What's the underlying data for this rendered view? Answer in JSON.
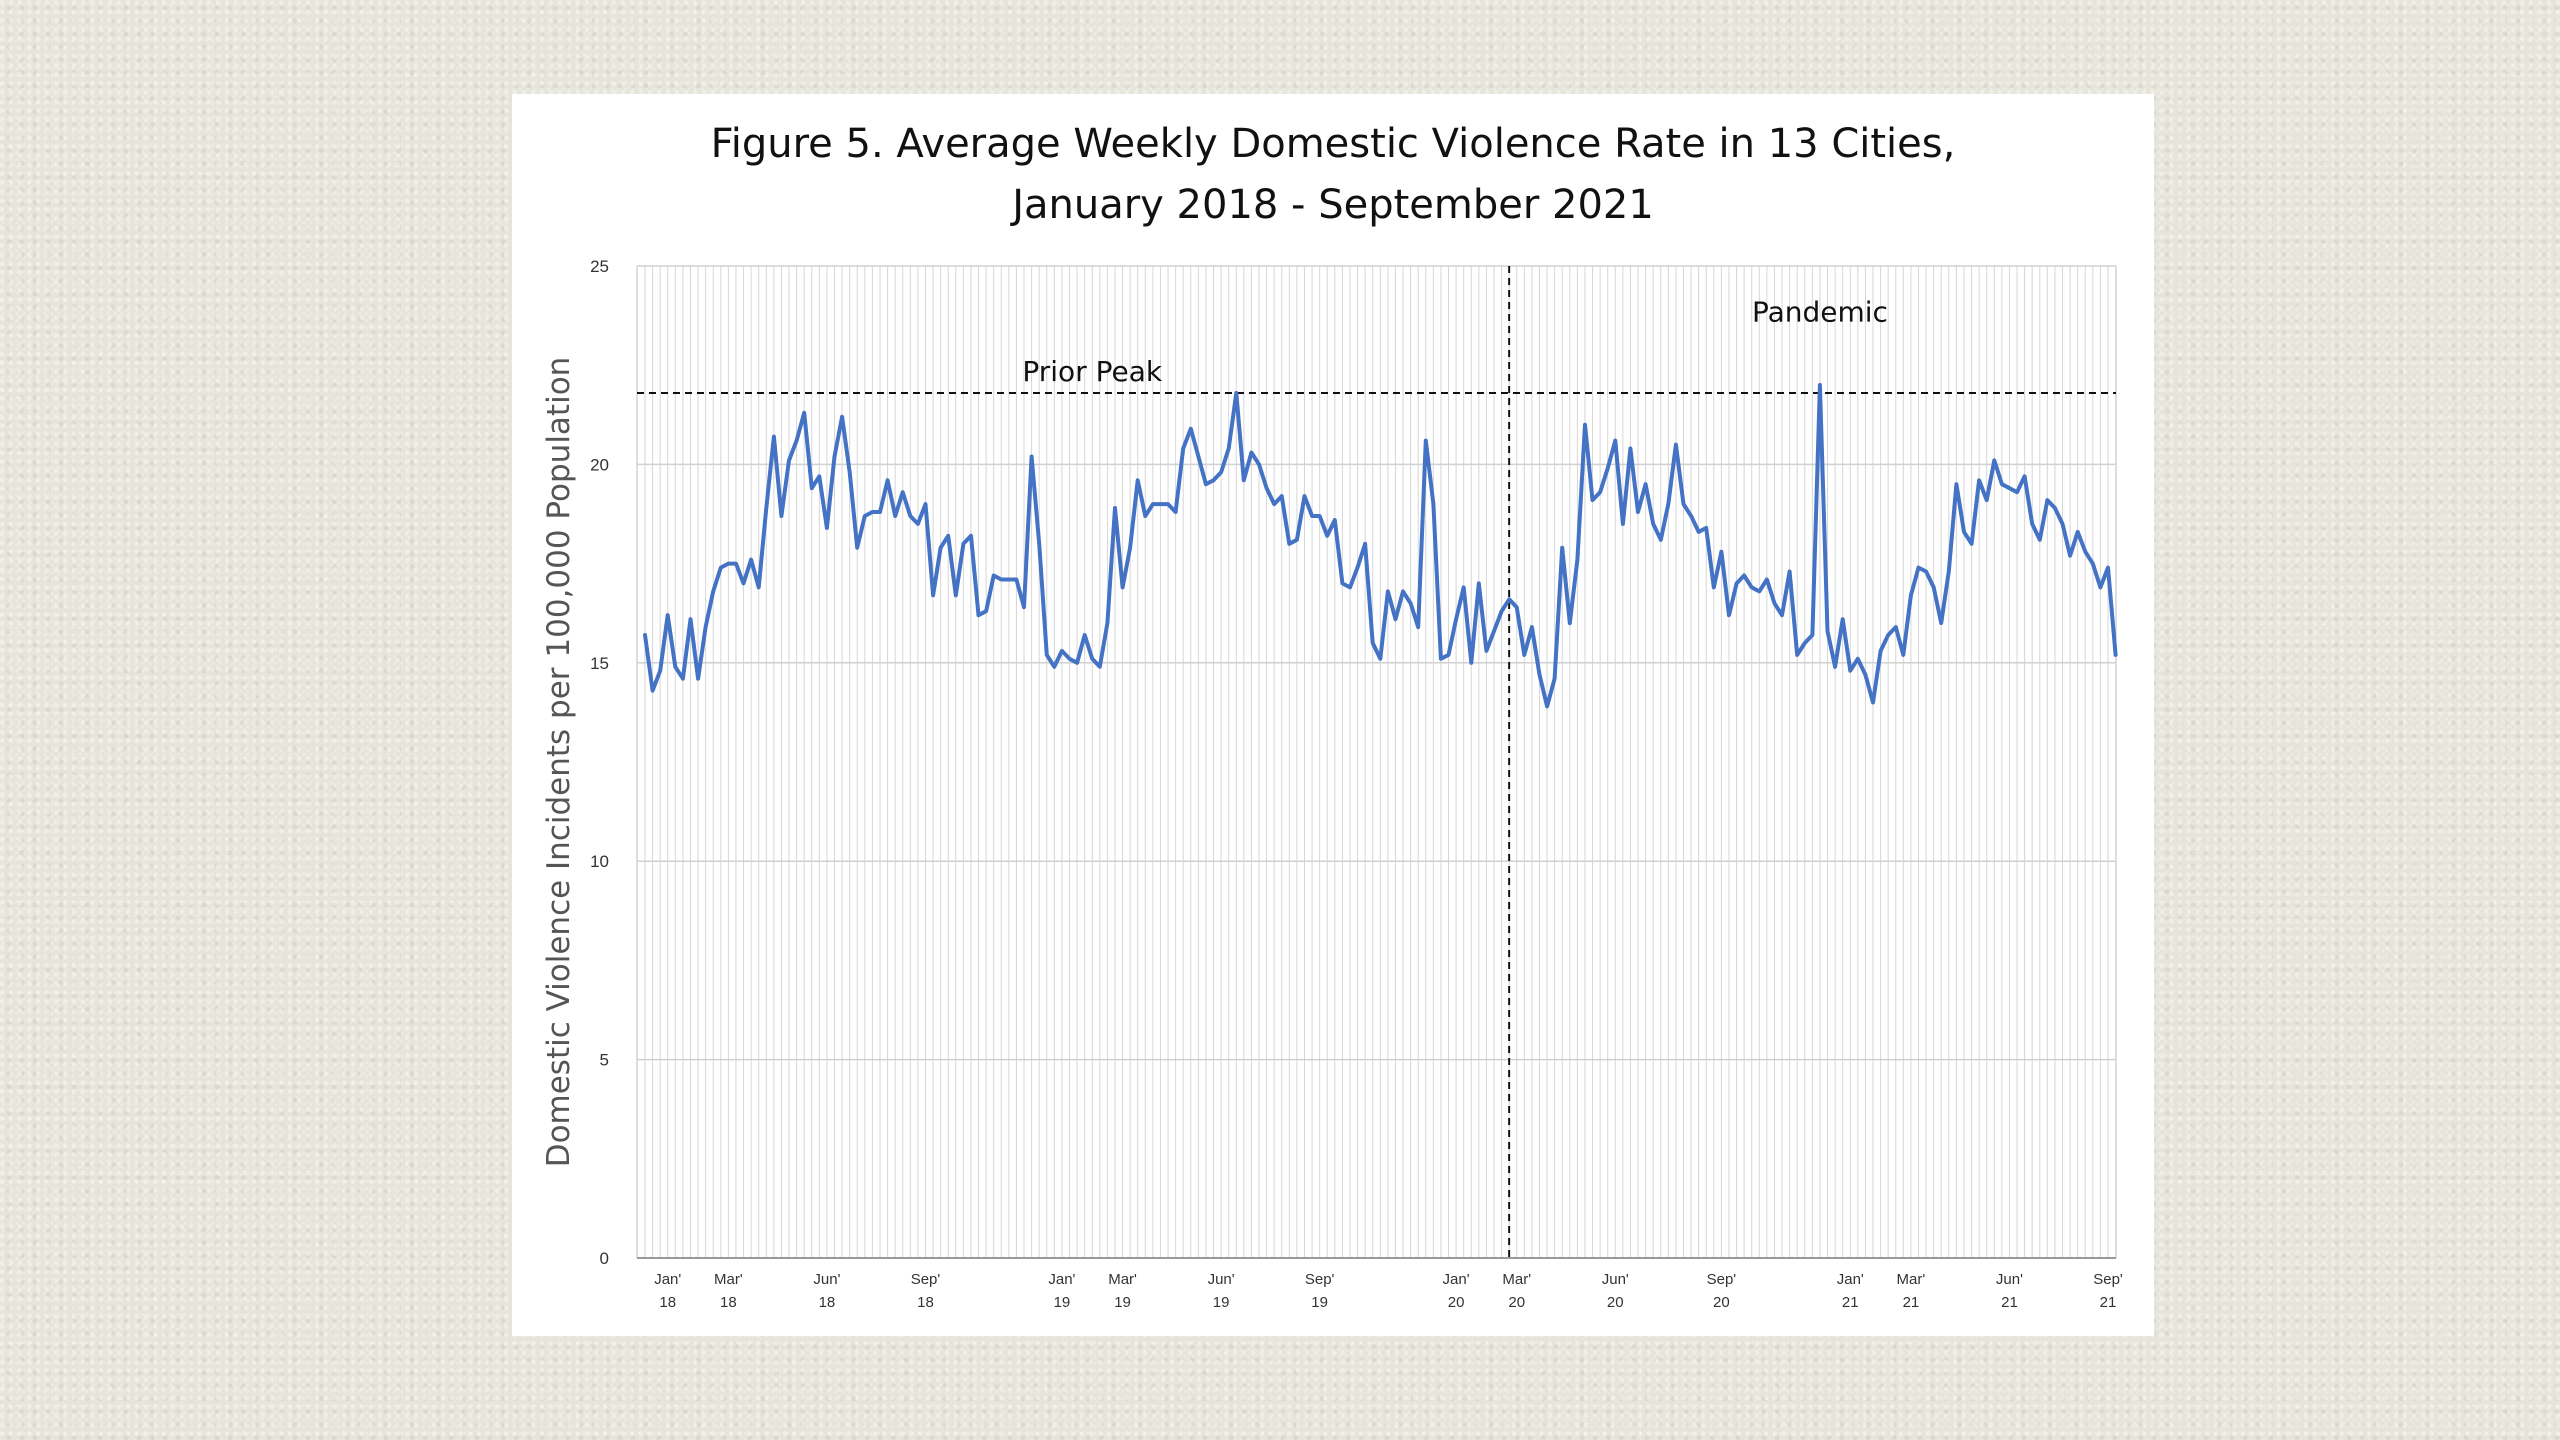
{
  "chart_data": {
    "type": "line",
    "title_lines": [
      "Figure 5. Average Weekly Domestic Violence Rate in 13 Cities,",
      "January 2018 - September 2021"
    ],
    "ylabel": "Domestic Violence Incidents per 100,000 Population",
    "xlabel": "",
    "ylim": [
      0,
      25
    ],
    "y_ticks": [
      0,
      5,
      10,
      15,
      20,
      25
    ],
    "grid": "vertical weekly gridlines, horizontal gridlines at 5-unit intervals",
    "x_week_range": [
      0,
      193
    ],
    "x_ticks": [
      {
        "week": 3,
        "label": [
          "Jan'",
          "18"
        ]
      },
      {
        "week": 11,
        "label": [
          "Mar'",
          "18"
        ]
      },
      {
        "week": 24,
        "label": [
          "Jun'",
          "18"
        ]
      },
      {
        "week": 37,
        "label": [
          "Sep'",
          "18"
        ]
      },
      {
        "week": 55,
        "label": [
          "Jan'",
          "19"
        ]
      },
      {
        "week": 63,
        "label": [
          "Mar'",
          "19"
        ]
      },
      {
        "week": 76,
        "label": [
          "Jun'",
          "19"
        ]
      },
      {
        "week": 89,
        "label": [
          "Sep'",
          "19"
        ]
      },
      {
        "week": 107,
        "label": [
          "Jan'",
          "20"
        ]
      },
      {
        "week": 115,
        "label": [
          "Mar'",
          "20"
        ]
      },
      {
        "week": 128,
        "label": [
          "Jun'",
          "20"
        ]
      },
      {
        "week": 142,
        "label": [
          "Sep'",
          "20"
        ]
      },
      {
        "week": 159,
        "label": [
          "Jan'",
          "21"
        ]
      },
      {
        "week": 167,
        "label": [
          "Mar'",
          "21"
        ]
      },
      {
        "week": 180,
        "label": [
          "Jun'",
          "21"
        ]
      },
      {
        "week": 193,
        "label": [
          "Sep'",
          "21"
        ]
      }
    ],
    "reference_lines": {
      "prior_peak_value": 21.8,
      "pandemic_start_week": 114
    },
    "annotations": {
      "prior_peak": "Prior Peak",
      "pandemic": "Pandemic"
    },
    "series": [
      {
        "color": "#4472c4",
        "x_start_week": 0,
        "values": [
          15.7,
          14.3,
          14.8,
          16.2,
          14.9,
          14.6,
          16.1,
          14.6,
          15.9,
          16.8,
          17.4,
          17.5,
          17.5,
          17.0,
          17.6,
          16.9,
          18.9,
          20.7,
          18.7,
          20.1,
          20.6,
          21.3,
          19.4,
          19.7,
          18.4,
          20.2,
          21.2,
          19.8,
          17.9,
          18.7,
          18.8,
          18.8,
          19.6,
          18.7,
          19.3,
          18.7,
          18.5,
          19.0,
          16.7,
          17.9,
          18.2,
          16.7,
          18.0,
          18.2,
          16.2,
          16.3,
          17.2,
          17.1,
          17.1,
          17.1,
          16.4,
          20.2,
          18.0,
          15.2,
          14.9,
          15.3,
          15.1,
          15.0,
          15.7,
          15.1,
          14.9,
          16.0,
          18.9,
          16.9,
          17.9,
          19.6,
          18.7,
          19.0,
          19.0,
          19.0,
          18.8,
          20.4,
          20.9,
          20.2,
          19.5,
          19.6,
          19.8,
          20.4,
          21.8,
          19.6,
          20.3,
          20.0,
          19.4,
          19.0,
          19.2,
          18.0,
          18.1,
          19.2,
          18.7,
          18.7,
          18.2,
          18.6,
          17.0,
          16.9,
          17.4,
          18.0,
          15.5,
          15.1,
          16.8,
          16.1,
          16.8,
          16.5,
          15.9,
          20.6,
          19.0,
          15.1,
          15.2,
          16.1,
          16.9,
          15.0,
          17.0,
          15.3,
          15.8,
          16.3,
          16.6,
          16.4,
          15.2,
          15.9,
          14.7,
          13.9,
          14.6,
          17.9,
          16.0,
          17.6,
          21.0,
          19.1,
          19.3,
          19.9,
          20.6,
          18.5,
          20.4,
          18.8,
          19.5,
          18.5,
          18.1,
          19.0,
          20.5,
          19.0,
          18.7,
          18.3,
          18.4,
          16.9,
          17.8,
          16.2,
          17.0,
          17.2,
          16.9,
          16.8,
          17.1,
          16.5,
          16.2,
          17.3,
          15.2,
          15.5,
          15.7,
          22.0,
          15.8,
          14.9,
          16.1,
          14.8,
          15.1,
          14.7,
          14.0,
          15.3,
          15.7,
          15.9,
          15.2,
          16.7,
          17.4,
          17.3,
          16.9,
          16.0,
          17.3,
          19.5,
          18.3,
          18.0,
          19.6,
          19.1,
          20.1,
          19.5,
          19.4,
          19.3,
          19.7,
          18.5,
          18.1,
          19.1,
          18.9,
          18.5,
          17.7,
          18.3,
          17.8,
          17.5,
          16.9,
          17.4,
          15.2
        ]
      }
    ]
  }
}
